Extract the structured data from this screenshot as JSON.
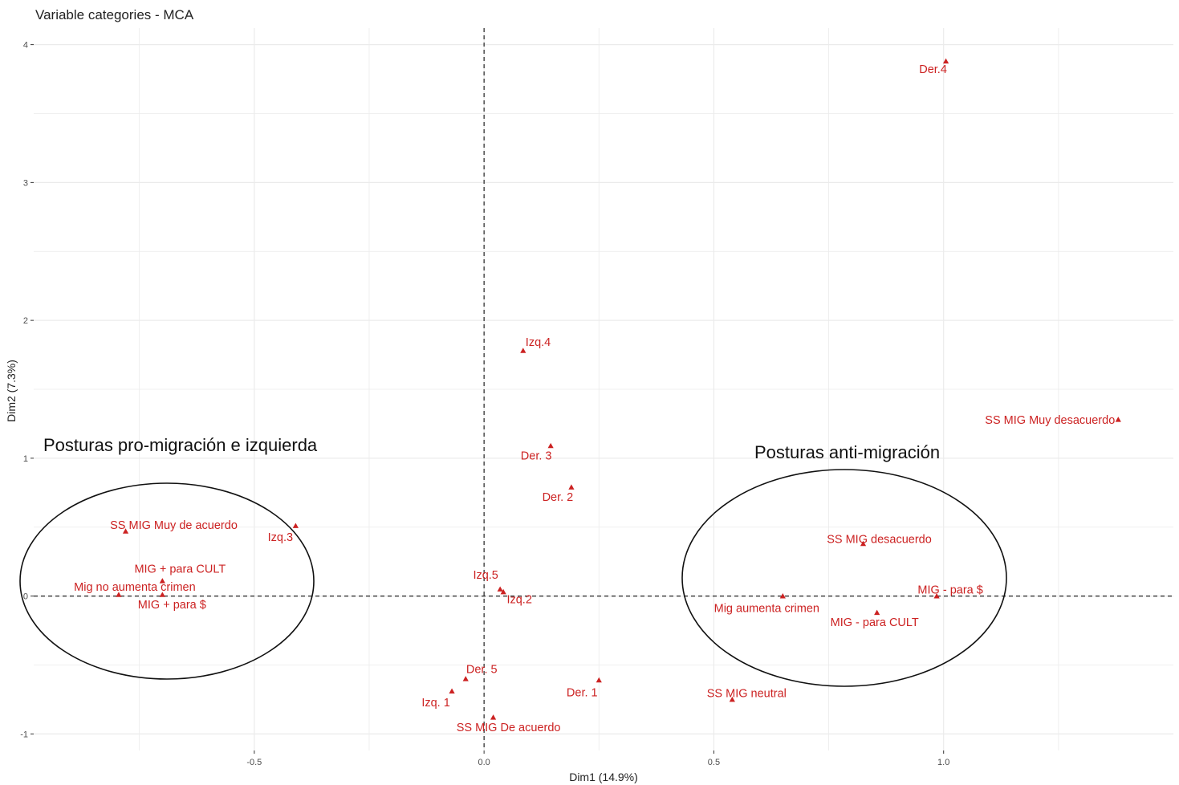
{
  "chart_data": {
    "type": "scatter",
    "title": "Variable categories - MCA",
    "xlabel": "Dim1 (14.9%)",
    "ylabel": "Dim2 (7.3%)",
    "xlim": [
      -0.98,
      1.5
    ],
    "ylim": [
      -1.12,
      4.12
    ],
    "xticks": [
      -0.5,
      0.0,
      0.5,
      1.0
    ],
    "xtick_labels": [
      "-0.5",
      "0.0",
      "0.5",
      "1.0"
    ],
    "yticks": [
      -1,
      0,
      1,
      2,
      3,
      4
    ],
    "ytick_labels": [
      "-1",
      "0",
      "1",
      "2",
      "3",
      "4"
    ],
    "grid": true,
    "reference_lines": {
      "x": 0,
      "y": 0
    },
    "colors": {
      "points": "#cc2222",
      "grid": "#ebebeb",
      "reference": "#222222",
      "ellipse": "#111111"
    },
    "points": [
      {
        "label": "Der.4",
        "x": 1.005,
        "y": 3.88
      },
      {
        "label": "SS MIG Muy desacuerdo",
        "x": 1.38,
        "y": 1.28
      },
      {
        "label": "Izq.4",
        "x": 0.085,
        "y": 1.78
      },
      {
        "label": "Der. 3",
        "x": 0.145,
        "y": 1.09
      },
      {
        "label": "Der. 2",
        "x": 0.19,
        "y": 0.79
      },
      {
        "label": "SS MIG Muy de acuerdo",
        "x": -0.78,
        "y": 0.47
      },
      {
        "label": "Izq.3",
        "x": -0.41,
        "y": 0.51
      },
      {
        "label": "MIG + para CULT",
        "x": -0.7,
        "y": 0.11
      },
      {
        "label": "Mig no aumenta crimen",
        "x": -0.795,
        "y": 0.01
      },
      {
        "label": "MIG + para $",
        "x": -0.7,
        "y": 0.01
      },
      {
        "label": "Izq.5",
        "x": 0.035,
        "y": 0.05
      },
      {
        "label": "Izq.2",
        "x": 0.042,
        "y": 0.03
      },
      {
        "label": "Der. 5",
        "x": -0.04,
        "y": -0.6
      },
      {
        "label": "Izq. 1",
        "x": -0.07,
        "y": -0.69
      },
      {
        "label": "SS MIG De acuerdo",
        "x": 0.02,
        "y": -0.88
      },
      {
        "label": "Der. 1",
        "x": 0.25,
        "y": -0.61
      },
      {
        "label": "SS MIG neutral",
        "x": 0.54,
        "y": -0.75
      },
      {
        "label": "SS MIG desacuerdo",
        "x": 0.825,
        "y": 0.38
      },
      {
        "label": "MIG - para $",
        "x": 0.985,
        "y": 0.0
      },
      {
        "label": "Mig aumenta crimen",
        "x": 0.65,
        "y": 0.0
      },
      {
        "label": "MIG - para CULT",
        "x": 0.855,
        "y": -0.12
      }
    ],
    "annotations": [
      {
        "text": "Posturas pro-migración e izquierda"
      },
      {
        "text": "Posturas anti-migración"
      }
    ]
  }
}
